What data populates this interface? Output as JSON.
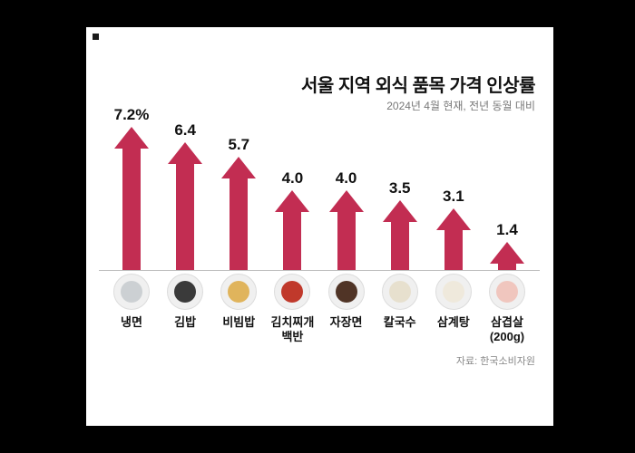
{
  "page": {
    "background": "#000000",
    "panel_background": "#ffffff",
    "accent_color": "#c22d52"
  },
  "header": {
    "title": "서울 지역 외식 품목 가격 인상률",
    "subtitle": "2024년 4월 현재, 전년 동월 대비"
  },
  "footer": {
    "source": "자료: 한국소비자원"
  },
  "chart_data": {
    "type": "bar",
    "variant": "upward-arrow-bars",
    "title": "서울 지역 외식 품목 가격 인상률",
    "subtitle": "2024년 4월 현재, 전년 동월 대비",
    "source": "자료: 한국소비자원",
    "categories": [
      "냉면",
      "김밥",
      "비빔밥",
      "김치찌개 백반",
      "자장면",
      "칼국수",
      "삼계탕",
      "삼겹살 (200g)"
    ],
    "values": [
      7.2,
      6.4,
      5.7,
      4.0,
      4.0,
      3.5,
      3.1,
      1.4
    ],
    "value_labels": [
      "7.2%",
      "6.4",
      "5.7",
      "4.0",
      "4.0",
      "3.5",
      "3.1",
      "1.4"
    ],
    "unit": "%",
    "bar_color": "#c22d52",
    "ylim": [
      0,
      8
    ],
    "grid": false,
    "legend": false
  },
  "items": [
    {
      "label": "냉면",
      "value": 7.2,
      "value_label": "7.2%",
      "icon": "naengmyeon-bowl-icon",
      "icon_color": "#ccd0d3"
    },
    {
      "label": "김밥",
      "value": 6.4,
      "value_label": "6.4",
      "icon": "gimbap-roll-icon",
      "icon_color": "#3a3a3a"
    },
    {
      "label": "비빔밥",
      "value": 5.7,
      "value_label": "5.7",
      "icon": "bibimbap-bowl-icon",
      "icon_color": "#e0b45c"
    },
    {
      "label": "김치찌개\n백반",
      "value": 4.0,
      "value_label": "4.0",
      "icon": "kimchi-jjigae-bowl-icon",
      "icon_color": "#c0392b"
    },
    {
      "label": "자장면",
      "value": 4.0,
      "value_label": "4.0",
      "icon": "jajangmyeon-bowl-icon",
      "icon_color": "#503426"
    },
    {
      "label": "칼국수",
      "value": 3.5,
      "value_label": "3.5",
      "icon": "kalguksu-bowl-icon",
      "icon_color": "#e7e0ce"
    },
    {
      "label": "삼계탕",
      "value": 3.1,
      "value_label": "3.1",
      "icon": "samgyetang-pot-icon",
      "icon_color": "#efe9dc"
    },
    {
      "label": "삼겹살\n(200g)",
      "value": 1.4,
      "value_label": "1.4",
      "icon": "samgyeopsal-meat-icon",
      "icon_color": "#f0c6be"
    }
  ]
}
